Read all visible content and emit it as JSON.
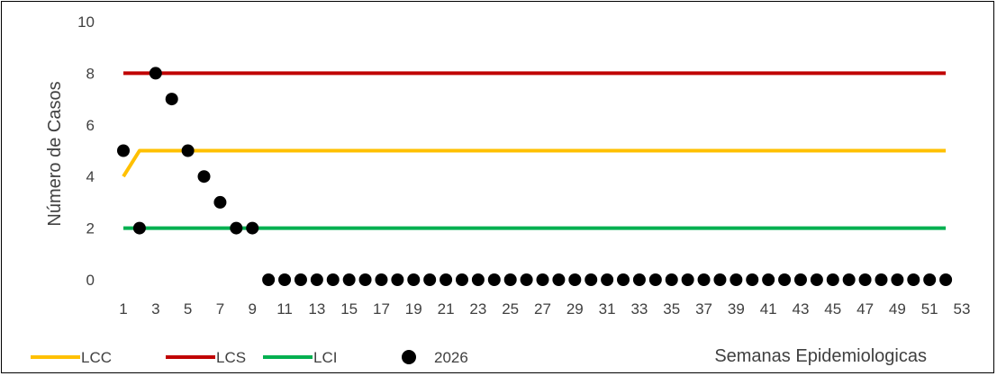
{
  "chart_data": {
    "type": "line",
    "title": "",
    "ylabel": "Número de Casos",
    "xlabel": "Semanas Epidemiologicas",
    "ylim": [
      0,
      10
    ],
    "yticks": [
      0,
      2,
      4,
      6,
      8,
      10
    ],
    "xlim": [
      1,
      53
    ],
    "xticks": [
      1,
      3,
      5,
      7,
      9,
      11,
      13,
      15,
      17,
      19,
      21,
      23,
      25,
      27,
      29,
      31,
      33,
      35,
      37,
      39,
      41,
      43,
      45,
      47,
      49,
      51,
      53
    ],
    "x": [
      1,
      2,
      3,
      4,
      5,
      6,
      7,
      8,
      9,
      10,
      11,
      12,
      13,
      14,
      15,
      16,
      17,
      18,
      19,
      20,
      21,
      22,
      23,
      24,
      25,
      26,
      27,
      28,
      29,
      30,
      31,
      32,
      33,
      34,
      35,
      36,
      37,
      38,
      39,
      40,
      41,
      42,
      43,
      44,
      45,
      46,
      47,
      48,
      49,
      50,
      51,
      52
    ],
    "grid": false,
    "legend_position": "bottom",
    "series": [
      {
        "name": "LCC",
        "style": "line",
        "color": "#FFC000",
        "values": [
          4,
          5,
          5,
          5,
          5,
          5,
          5,
          5,
          5,
          5,
          5,
          5,
          5,
          5,
          5,
          5,
          5,
          5,
          5,
          5,
          5,
          5,
          5,
          5,
          5,
          5,
          5,
          5,
          5,
          5,
          5,
          5,
          5,
          5,
          5,
          5,
          5,
          5,
          5,
          5,
          5,
          5,
          5,
          5,
          5,
          5,
          5,
          5,
          5,
          5,
          5,
          5
        ]
      },
      {
        "name": "LCS",
        "style": "line",
        "color": "#C00000",
        "values": [
          8,
          8,
          8,
          8,
          8,
          8,
          8,
          8,
          8,
          8,
          8,
          8,
          8,
          8,
          8,
          8,
          8,
          8,
          8,
          8,
          8,
          8,
          8,
          8,
          8,
          8,
          8,
          8,
          8,
          8,
          8,
          8,
          8,
          8,
          8,
          8,
          8,
          8,
          8,
          8,
          8,
          8,
          8,
          8,
          8,
          8,
          8,
          8,
          8,
          8,
          8,
          8
        ]
      },
      {
        "name": "LCI",
        "style": "line",
        "color": "#00B050",
        "values": [
          2,
          2,
          2,
          2,
          2,
          2,
          2,
          2,
          2,
          2,
          2,
          2,
          2,
          2,
          2,
          2,
          2,
          2,
          2,
          2,
          2,
          2,
          2,
          2,
          2,
          2,
          2,
          2,
          2,
          2,
          2,
          2,
          2,
          2,
          2,
          2,
          2,
          2,
          2,
          2,
          2,
          2,
          2,
          2,
          2,
          2,
          2,
          2,
          2,
          2,
          2,
          2
        ]
      },
      {
        "name": "2026",
        "style": "markers",
        "color": "#000000",
        "values": [
          5,
          2,
          8,
          7,
          5,
          4,
          3,
          2,
          2,
          0,
          0,
          0,
          0,
          0,
          0,
          0,
          0,
          0,
          0,
          0,
          0,
          0,
          0,
          0,
          0,
          0,
          0,
          0,
          0,
          0,
          0,
          0,
          0,
          0,
          0,
          0,
          0,
          0,
          0,
          0,
          0,
          0,
          0,
          0,
          0,
          0,
          0,
          0,
          0,
          0,
          0,
          0
        ]
      }
    ]
  }
}
